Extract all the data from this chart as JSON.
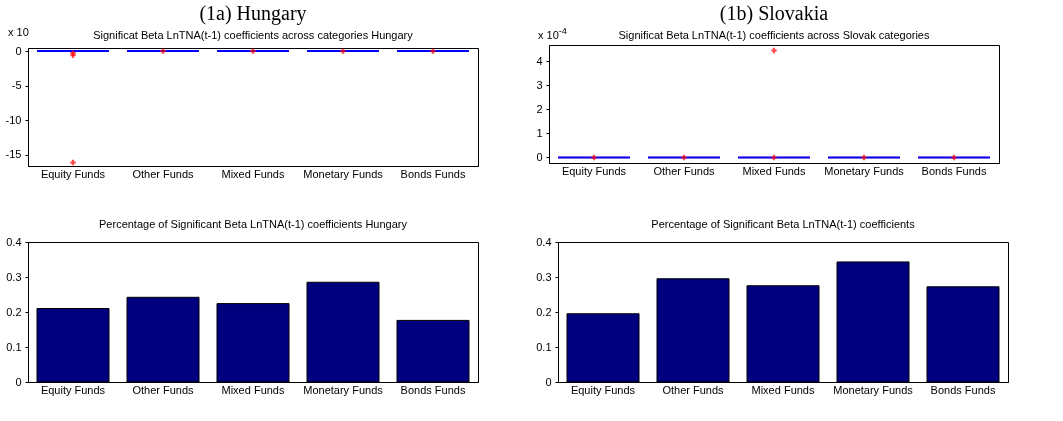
{
  "chart_data": [
    {
      "type": "box",
      "title": "(1a)    Hungary",
      "subtitle": "Significat Beta LnTNA(t-1) coefficients  across categories Hungary",
      "annotations": [
        "x 10"
      ],
      "categories": [
        "Equity Funds",
        "Other Funds",
        "Mixed Funds",
        "Monetary Funds",
        "Bonds Funds"
      ],
      "ylim": [
        -16.6,
        0.45
      ],
      "yticks": [
        -15,
        -10,
        -5,
        0
      ],
      "series": [
        {
          "boxes": [
            {
              "low": 0,
              "q1": 0,
              "median": 0,
              "q3": 0,
              "high": 0,
              "outliers": [
                -0.3,
                -0.6,
                -16.1
              ]
            },
            {
              "low": 0,
              "q1": 0,
              "median": 0,
              "q3": 0,
              "high": 0,
              "outliers": [
                0
              ]
            },
            {
              "low": 0,
              "q1": 0,
              "median": 0,
              "q3": 0,
              "high": 0,
              "outliers": [
                0
              ]
            },
            {
              "low": 0,
              "q1": 0,
              "median": 0,
              "q3": 0,
              "high": 0,
              "outliers": [
                0
              ]
            },
            {
              "low": 0,
              "q1": 0,
              "median": 0,
              "q3": 0,
              "high": 0,
              "outliers": [
                0
              ]
            }
          ]
        }
      ]
    },
    {
      "type": "box",
      "title": "(1b) Slovakia",
      "subtitle": "Significat Beta LnTNA(t-1) coefficients  across Slovak categories",
      "annotations": [
        "x 10$^{-4}$"
      ],
      "categories": [
        "Equity Funds",
        "Other Funds",
        "Mixed Funds",
        "Monetary Funds",
        "Bonds Funds"
      ],
      "ylim": [
        -0.23,
        4.68
      ],
      "yticks": [
        0,
        1,
        2,
        3,
        4
      ],
      "series": [
        {
          "boxes": [
            {
              "low": 0,
              "q1": 0,
              "median": 0,
              "q3": 0,
              "high": 0,
              "outliers": [
                0
              ]
            },
            {
              "low": 0,
              "q1": 0,
              "median": 0,
              "q3": 0,
              "high": 0,
              "outliers": [
                0
              ]
            },
            {
              "low": 0,
              "q1": 0,
              "median": 0,
              "q3": 0,
              "high": 0,
              "outliers": [
                0,
                4.45
              ]
            },
            {
              "low": 0,
              "q1": 0,
              "median": 0,
              "q3": 0,
              "high": 0,
              "outliers": [
                0
              ]
            },
            {
              "low": 0,
              "q1": 0,
              "median": 0,
              "q3": 0,
              "high": 0,
              "outliers": [
                0
              ]
            }
          ]
        }
      ]
    },
    {
      "type": "bar",
      "title": "Percentage of Significant Beta LnTNA(t-1) coefficients Hungary",
      "categories": [
        "Equity Funds",
        "Other Funds",
        "Mixed Funds",
        "Monetary Funds",
        "Bonds Funds"
      ],
      "ylim": [
        0,
        0.4
      ],
      "yticks": [
        0,
        0.1,
        0.2,
        0.3,
        0.4
      ],
      "color": "#00007f",
      "values": [
        0.21,
        0.242,
        0.224,
        0.285,
        0.176
      ]
    },
    {
      "type": "bar",
      "title": "Percentage of Significant Beta LnTNA(t-1) coefficients",
      "categories": [
        "Equity Funds",
        "Other Funds",
        "Mixed Funds",
        "Monetary Funds",
        "Bonds Funds"
      ],
      "ylim": [
        0,
        0.4
      ],
      "yticks": [
        0,
        0.1,
        0.2,
        0.3,
        0.4
      ],
      "color": "#00007f",
      "values": [
        0.195,
        0.295,
        0.275,
        0.343,
        0.272
      ]
    }
  ]
}
